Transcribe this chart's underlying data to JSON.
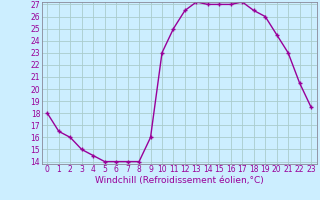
{
  "x": [
    0,
    1,
    2,
    3,
    4,
    5,
    6,
    7,
    8,
    9,
    10,
    11,
    12,
    13,
    14,
    15,
    16,
    17,
    18,
    19,
    20,
    21,
    22,
    23
  ],
  "y": [
    18,
    16.5,
    16,
    15,
    14.5,
    14,
    14,
    14,
    14,
    16,
    23,
    25,
    26.5,
    27.2,
    27,
    27,
    27,
    27.2,
    26.5,
    26,
    24.5,
    23,
    20.5,
    18.5
  ],
  "line_color": "#990099",
  "marker": "+",
  "marker_size": 3,
  "bg_color": "#cceeff",
  "grid_color": "#aacccc",
  "xlabel": "Windchill (Refroidissement éolien,°C)",
  "xlabel_fontsize": 6.5,
  "xlabel_color": "#990099",
  "tick_color": "#990099",
  "ylim": [
    14,
    27
  ],
  "xlim": [
    -0.5,
    23.5
  ],
  "yticks": [
    14,
    15,
    16,
    17,
    18,
    19,
    20,
    21,
    22,
    23,
    24,
    25,
    26,
    27
  ],
  "xticks": [
    0,
    1,
    2,
    3,
    4,
    5,
    6,
    7,
    8,
    9,
    10,
    11,
    12,
    13,
    14,
    15,
    16,
    17,
    18,
    19,
    20,
    21,
    22,
    23
  ],
  "tick_fontsize": 5.5,
  "linewidth": 1.0,
  "markeredgewidth": 1.0
}
